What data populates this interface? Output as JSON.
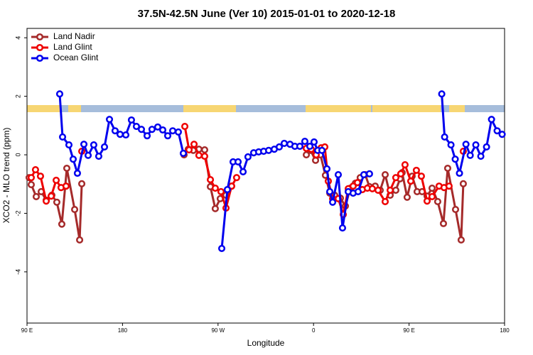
{
  "chart_data": {
    "type": "line",
    "title": "37.5N-42.5N June (Ver 10)   2015-01-01 to 2020-12-18",
    "xlabel": "Longitude",
    "ylabel": "XCO2 - MLO trend (ppm)",
    "xlim": [
      90,
      540
    ],
    "ylim": [
      -5.75,
      4.32
    ],
    "xticks": [
      {
        "value": 90,
        "label": "90 E"
      },
      180,
      {
        "value": 270,
        "label": "90 W"
      },
      {
        "value": 360,
        "label": "0"
      },
      {
        "value": 450,
        "label": "90 E"
      },
      {
        "value": 540,
        "label": "180"
      }
    ],
    "yticks": [
      -4,
      -2,
      0,
      2,
      4
    ],
    "legend": "top-left",
    "series": [
      {
        "name": "Land Nadir",
        "color": "#a52a2a",
        "x": [
          92,
          94,
          98.7,
          103.4,
          108.1,
          113.4,
          118.1,
          122.8,
          127.5,
          134.9,
          139.6,
          141.6,
          null,
          238,
          242,
          246.7,
          252,
          257.4,
          262.8,
          267.4,
          272.1,
          277.5,
          282.8,
          null,
          353.2,
          357.2,
          361.9,
          366.5,
          371.2,
          375.3,
          379.9,
          385.3,
          390,
          394.7,
          399.4,
          404,
          408.7,
          412.7,
          418.1,
          422.8,
          427.5,
          432.2,
          437.5,
          441.5,
          443.5,
          448.2,
          452.9,
          457.6,
          462.3,
          467,
          471.7,
          477,
          482.4,
          486.4,
          493.8,
          499.1,
          501.1
        ],
        "values": [
          -0.78,
          -1.02,
          -1.43,
          -1.26,
          -1.55,
          -1.38,
          -1.62,
          -2.37,
          -0.46,
          -1.87,
          -2.91,
          -0.99,
          null,
          0,
          0.19,
          0.15,
          0.19,
          0.17,
          -1.09,
          -1.84,
          -1.5,
          -1.38,
          -1.07,
          null,
          0,
          0.15,
          -0.19,
          0,
          -0.7,
          -1.31,
          -1.38,
          -1.48,
          -1.75,
          -1.14,
          -0.97,
          -0.78,
          -0.68,
          -1.09,
          -1.07,
          -1.21,
          -0.68,
          -1.38,
          -1.21,
          -0.82,
          -0.61,
          -1.45,
          -0.73,
          -1.26,
          -1.26,
          -1.41,
          -1.14,
          -1.6,
          -2.35,
          -0.46,
          -1.87,
          -2.91,
          -0.99
        ]
      },
      {
        "name": "Land Glint",
        "color": "#ee0000",
        "x": [
          94,
          98,
          102.7,
          108.1,
          112.8,
          117.5,
          122.1,
          126.8,
          null,
          141.6,
          null,
          238.7,
          242.7,
          247.4,
          252,
          257.4,
          262.8,
          267.4,
          272.8,
          277.5,
          282.8,
          287.5,
          null,
          353.2,
          357.8,
          362.5,
          367.2,
          370.6,
          373.9,
          378,
          383.3,
          388,
          392.7,
          397.3,
          401.4,
          406,
          410.7,
          415.4,
          420.8,
          427.5,
          432.2,
          437.5,
          442.2,
          446.2,
          451.6,
          456.9,
          461.6,
          467,
          471.7,
          478.3,
          483,
          487.7,
          null,
          501.1
        ],
        "values": [
          -0.78,
          -0.51,
          -0.73,
          -1.58,
          -1.41,
          -0.87,
          -1.12,
          -1.07,
          null,
          0.12,
          null,
          0.97,
          0.17,
          0.36,
          -0.02,
          -0.05,
          -0.85,
          -1.14,
          -1.26,
          -1.82,
          -1.07,
          -0.78,
          null,
          0.22,
          0.19,
          0,
          0.24,
          0.27,
          -0.9,
          -1.5,
          -1.5,
          -2.04,
          -1.16,
          -1.07,
          -0.95,
          -1.19,
          -1.14,
          -1.16,
          -1.21,
          -1.6,
          -1.21,
          -0.78,
          -0.65,
          -0.34,
          -0.9,
          -0.53,
          -0.73,
          -1.58,
          -1.43,
          -1.07,
          -1.12,
          -1.07,
          null,
          0.12
        ]
      },
      {
        "name": "Ocean Glint",
        "color": "#0000ee",
        "x": [
          120.8,
          123.5,
          129.5,
          133.5,
          137.5,
          143.6,
          147.6,
          152.9,
          157.6,
          163,
          167.7,
          173,
          177.7,
          183.1,
          188.4,
          193.1,
          197.8,
          203.2,
          207.8,
          213.2,
          217.9,
          222.6,
          227.3,
          232.6,
          237.3,
          null,
          273.5,
          278.8,
          284.2,
          288.9,
          293.6,
          298.2,
          303.6,
          308.3,
          313,
          317.7,
          323,
          327.7,
          332.4,
          337.8,
          342.4,
          347.1,
          351.8,
          356.5,
          360.5,
          363.9,
          367.9,
          372.6,
          375.3,
          378,
          383.3,
          387.3,
          392.7,
          397.3,
          402,
          407.4,
          412.7,
          null,
          480.8,
          483.5,
          489.5,
          493.5,
          497.5,
          503.6,
          507.6,
          512.9,
          517.6,
          523,
          527.7,
          533,
          537.7
        ],
        "values": [
          2.08,
          0.61,
          0.34,
          -0.15,
          -0.63,
          0.36,
          -0.02,
          0.34,
          -0.05,
          0.27,
          1.21,
          0.82,
          0.7,
          0.68,
          1.19,
          0.97,
          0.87,
          0.65,
          0.87,
          0.95,
          0.85,
          0.65,
          0.82,
          0.78,
          0.05,
          null,
          -3.2,
          -1.19,
          -0.24,
          -0.24,
          -0.58,
          -0.07,
          0.07,
          0.1,
          0.12,
          0.15,
          0.19,
          0.27,
          0.39,
          0.36,
          0.29,
          0.29,
          0.46,
          0.29,
          0.44,
          0.15,
          0.15,
          -0.48,
          -1.26,
          -1.62,
          -0.68,
          -2.5,
          -1.26,
          -1.31,
          -1.26,
          -0.68,
          -0.65,
          null,
          2.08,
          0.61,
          0.34,
          -0.15,
          -0.63,
          0.36,
          -0.02,
          0.34,
          -0.05,
          0.27,
          1.21,
          0.82,
          0.7
        ]
      }
    ]
  }
}
